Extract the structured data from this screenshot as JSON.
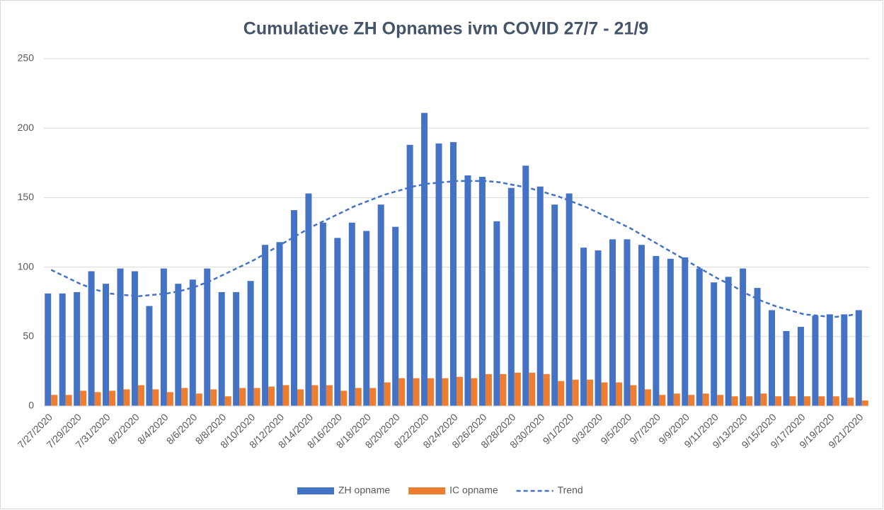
{
  "chart_data": {
    "type": "bar",
    "title": "Cumulatieve ZH Opnames ivm COVID 27/7 - 21/9",
    "categories": [
      "7/27/2020",
      null,
      "7/29/2020",
      null,
      "7/31/2020",
      null,
      "8/2/2020",
      null,
      "8/4/2020",
      null,
      "8/6/2020",
      null,
      "8/8/2020",
      null,
      "8/10/2020",
      null,
      "8/12/2020",
      null,
      "8/14/2020",
      null,
      "8/16/2020",
      null,
      "8/18/2020",
      null,
      "8/20/2020",
      null,
      "8/22/2020",
      null,
      "8/24/2020",
      null,
      "8/26/2020",
      null,
      "8/28/2020",
      null,
      "8/30/2020",
      null,
      "9/1/2020",
      null,
      "9/3/2020",
      null,
      "9/5/2020",
      null,
      "9/7/2020",
      null,
      "9/9/2020",
      null,
      "9/11/2020",
      null,
      "9/13/2020",
      null,
      "9/15/2020",
      null,
      "9/17/2020",
      null,
      "9/19/2020",
      null,
      "9/21/2020"
    ],
    "series": [
      {
        "name": "ZH opname",
        "type": "bar",
        "color": "#4472c4",
        "values": [
          81,
          81,
          82,
          97,
          88,
          99,
          97,
          72,
          99,
          88,
          91,
          99,
          82,
          82,
          90,
          116,
          118,
          141,
          153,
          132,
          121,
          132,
          126,
          145,
          129,
          188,
          211,
          189,
          190,
          166,
          165,
          133,
          157,
          173,
          158,
          145,
          153,
          114,
          112,
          120,
          120,
          116,
          108,
          106,
          107,
          99,
          89,
          93,
          99,
          85,
          69,
          54,
          57,
          65,
          66,
          66,
          69
        ]
      },
      {
        "name": "IC opname",
        "type": "bar",
        "color": "#ed7d31",
        "values": [
          8,
          8,
          11,
          10,
          11,
          12,
          15,
          12,
          10,
          13,
          9,
          12,
          7,
          13,
          13,
          14,
          15,
          12,
          15,
          15,
          11,
          13,
          13,
          17,
          20,
          20,
          20,
          20,
          21,
          20,
          23,
          23,
          24,
          24,
          23,
          18,
          19,
          19,
          17,
          17,
          15,
          12,
          8,
          9,
          8,
          9,
          8,
          7,
          7,
          9,
          7,
          7,
          7,
          7,
          7,
          6,
          4
        ]
      },
      {
        "name": "Trend",
        "type": "line",
        "dashed": true,
        "color": "#4472c4",
        "values": [
          98,
          93,
          88,
          84,
          81,
          80,
          79,
          80,
          81,
          83,
          86,
          90,
          95,
          100,
          105,
          111,
          117,
          123,
          129,
          134,
          139,
          144,
          148,
          152,
          155,
          158,
          160,
          161,
          162,
          162,
          162,
          161,
          159,
          157,
          154,
          151,
          147,
          143,
          138,
          133,
          128,
          122,
          116,
          110,
          104,
          98,
          92,
          87,
          81,
          76,
          72,
          69,
          66,
          65,
          64,
          65,
          67
        ]
      }
    ],
    "ylim": [
      0,
      250
    ],
    "yticks": [
      0,
      50,
      100,
      150,
      200,
      250
    ],
    "grid": true,
    "legend": "bottom"
  }
}
